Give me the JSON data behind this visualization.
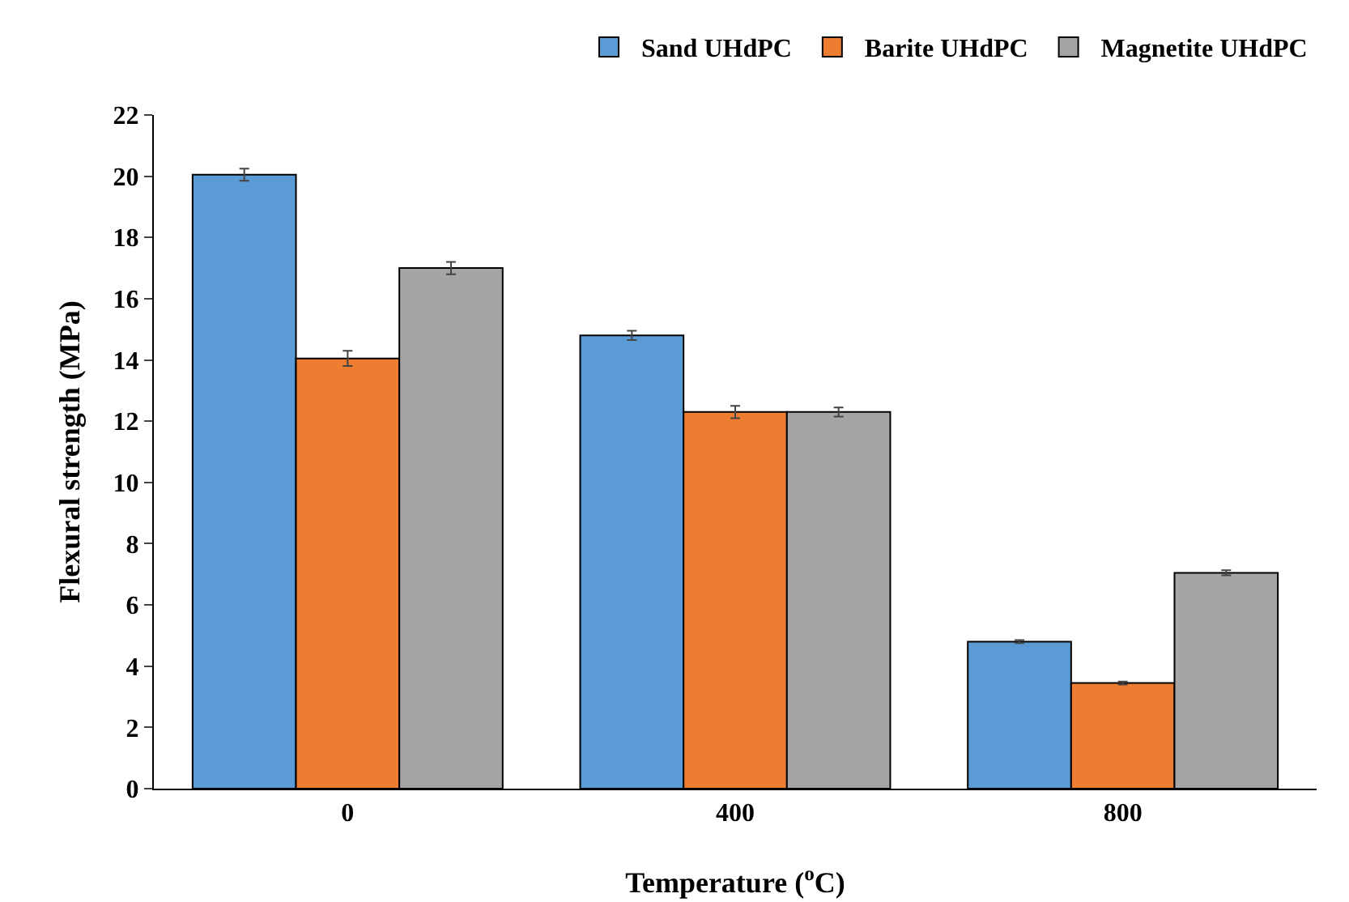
{
  "chart_data": {
    "type": "bar",
    "xlabel": "Temperature ($^{o}$C)",
    "ylabel": "Flexural strength (MPa)",
    "categories": [
      "0",
      "400",
      "800"
    ],
    "series": [
      {
        "name": "Sand UHdPC",
        "color": "#5b9bd5",
        "values": [
          20.05,
          14.8,
          4.8
        ],
        "errors": [
          0.2,
          0.15,
          0.05
        ]
      },
      {
        "name": "Barite UHdPC",
        "color": "#ed7d31",
        "values": [
          14.05,
          12.3,
          3.45
        ],
        "errors": [
          0.25,
          0.2,
          0.05
        ]
      },
      {
        "name": "Magnetite UHdPC",
        "color": "#a5a5a5",
        "values": [
          17.0,
          12.3,
          7.05
        ],
        "errors": [
          0.2,
          0.15,
          0.08
        ]
      }
    ],
    "ylim": [
      0,
      22
    ],
    "yticks": [
      0,
      2,
      4,
      6,
      8,
      10,
      12,
      14,
      16,
      18,
      20,
      22
    ],
    "grid": false,
    "legend": "top right"
  }
}
